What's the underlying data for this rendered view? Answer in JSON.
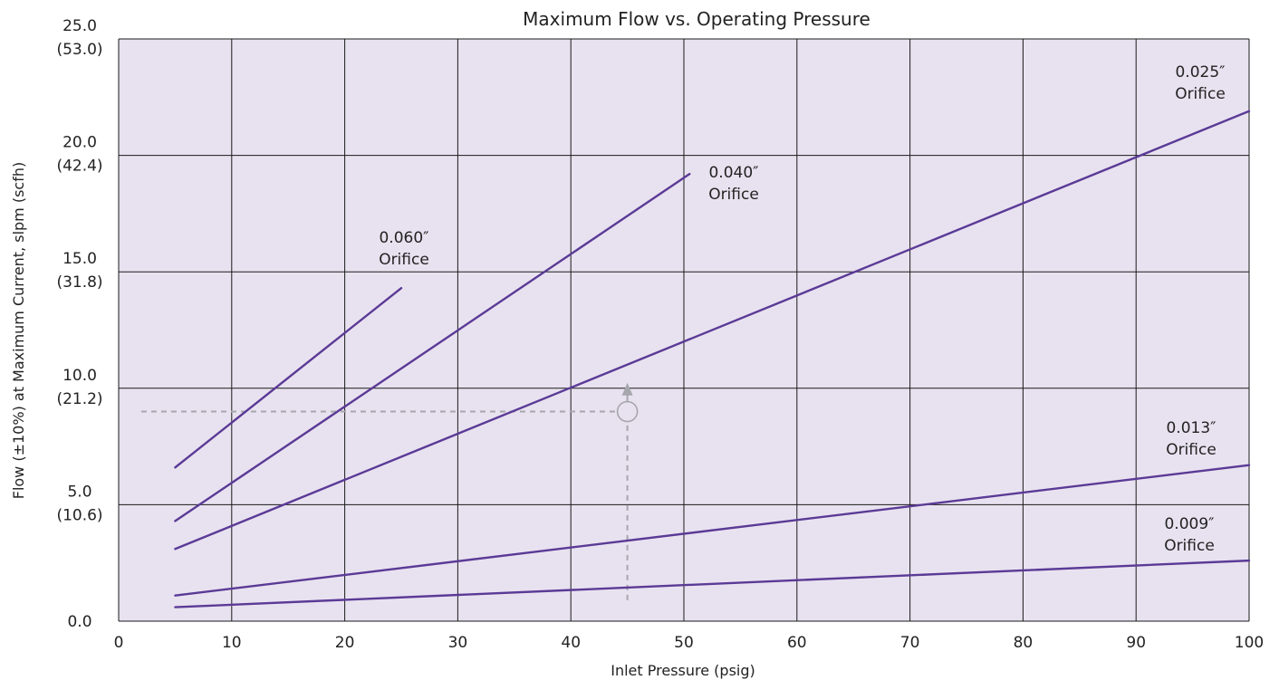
{
  "chart_data": {
    "type": "line",
    "title": "Maximum Flow vs. Operating Pressure",
    "xlabel": "Inlet Pressure (psig)",
    "ylabel": "Flow (±10%) at Maximum Current, slpm (scfh)",
    "xlim": [
      0,
      100
    ],
    "ylim": [
      0,
      25
    ],
    "x_ticks": [
      0,
      10,
      20,
      30,
      40,
      50,
      60,
      70,
      80,
      90,
      100
    ],
    "x_tick_labels": [
      "0",
      "10",
      "20",
      "30",
      "40",
      "50",
      "60",
      "70",
      "80",
      "90",
      "100"
    ],
    "y_ticks": [
      0,
      5,
      10,
      15,
      20,
      25
    ],
    "y_tick_labels": [
      {
        "primary": "0.0",
        "secondary": ""
      },
      {
        "primary": "5.0",
        "secondary": "(10.6)"
      },
      {
        "primary": "10.0",
        "secondary": "(21.2)"
      },
      {
        "primary": "15.0",
        "secondary": "(31.8)"
      },
      {
        "primary": "20.0",
        "secondary": "(42.4)"
      },
      {
        "primary": "25.0",
        "secondary": "(53.0)"
      }
    ],
    "grid": true,
    "background_color": "#e8e2f0",
    "line_color": "#5b3a96",
    "guide_color": "#a6a6ad",
    "series": [
      {
        "name": "0.060″ Orifice",
        "label_lines": [
          "0.060″",
          "Orifice"
        ],
        "points": [
          [
            5,
            6.6
          ],
          [
            25,
            14.3
          ]
        ]
      },
      {
        "name": "0.040″ Orifice",
        "label_lines": [
          "0.040″",
          "Orifice"
        ],
        "points": [
          [
            5,
            4.3
          ],
          [
            50.5,
            19.2
          ]
        ]
      },
      {
        "name": "0.025″ Orifice",
        "label_lines": [
          "0.025″",
          "Orifice"
        ],
        "points": [
          [
            5,
            3.1
          ],
          [
            100,
            21.9
          ]
        ]
      },
      {
        "name": "0.013″ Orifice",
        "label_lines": [
          "0.013″",
          "Orifice"
        ],
        "points": [
          [
            5,
            1.1
          ],
          [
            100,
            6.7
          ]
        ]
      },
      {
        "name": "0.009″ Orifice",
        "label_lines": [
          "0.009″",
          "Orifice"
        ],
        "points": [
          [
            5,
            0.6
          ],
          [
            100,
            2.6
          ]
        ]
      }
    ],
    "example_guide": {
      "x": 45,
      "y": 9.0,
      "x_start": 2,
      "y_start": 0.9,
      "arrow_to_y": 10.0
    }
  }
}
